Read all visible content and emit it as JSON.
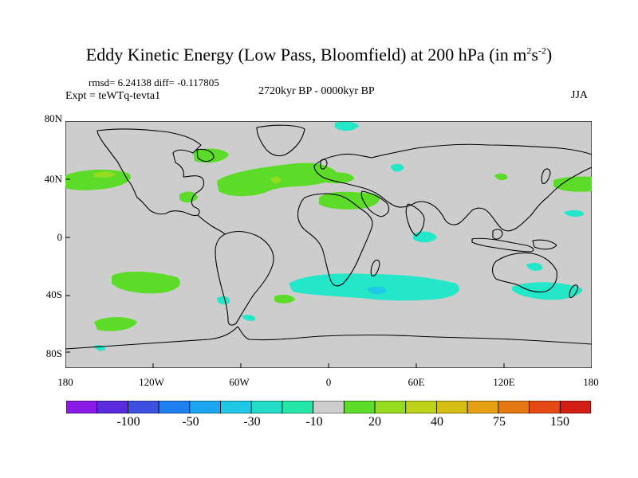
{
  "title": {
    "main": "Eddy Kinetic Energy (Low Pass, Bloomfield) at 200 hPa (in m",
    "sup1": "2",
    "mid": "s",
    "sup2": "-2",
    "close": ")"
  },
  "stats": "rmsd= 6.24138  diff= -0.117805",
  "expt": "Expt = teWTq-tevta1",
  "period": "2720kyr BP - 0000kyr BP",
  "season": "JJA",
  "y_ticks": [
    "80N",
    "40N",
    "0",
    "40S",
    "80S"
  ],
  "x_ticks": [
    "180",
    "120W",
    "60W",
    "0",
    "60E",
    "120E",
    "180"
  ],
  "colorbar": {
    "labels": [
      "-100",
      "-50",
      "-30",
      "-10",
      "20",
      "40",
      "75",
      "150"
    ],
    "colors": [
      "#8c1ae6",
      "#5a2ae0",
      "#3c4fe0",
      "#1f7ef0",
      "#1aa6f0",
      "#1ec8e6",
      "#22dcc8",
      "#24e6a8",
      "#cdcdcd",
      "#5cdc28",
      "#96dc1e",
      "#bed21a",
      "#d7be14",
      "#e6a014",
      "#e67814",
      "#e64a14",
      "#d21e14"
    ]
  },
  "colors": {
    "land_ocean": "#cdcdcd",
    "positive": "#5cdc28",
    "negative": "#24e6c8",
    "strong_positive": "#96dc1e",
    "strong_negative": "#1ec8e6"
  }
}
